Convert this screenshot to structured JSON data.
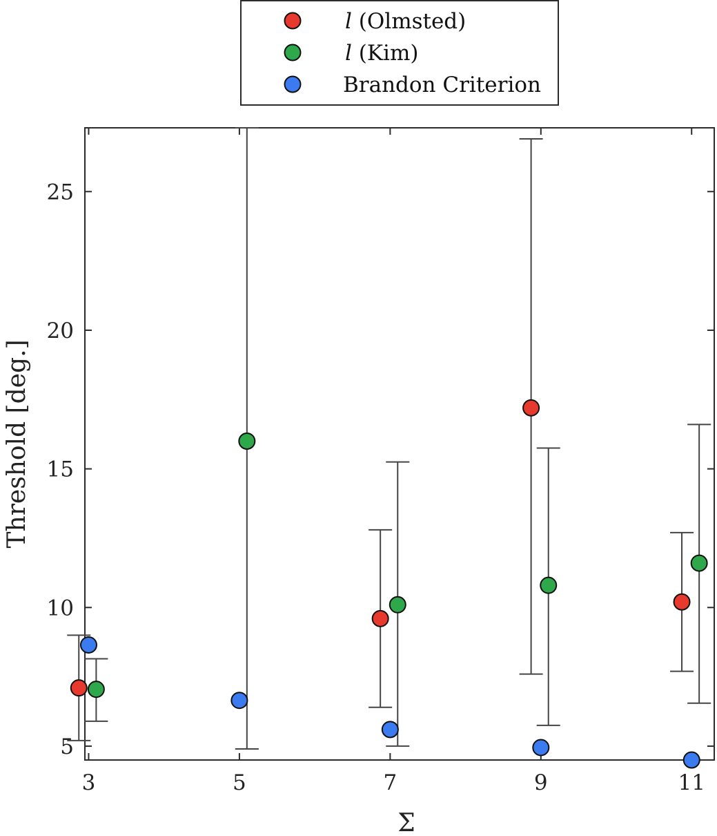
{
  "chart_data": {
    "type": "scatter",
    "xlabel": "Σ",
    "ylabel": "Threshold [deg.]",
    "x_ticks": [
      "3",
      "5",
      "7",
      "9",
      "11"
    ],
    "y_ticks": [
      "5",
      "10",
      "15",
      "20",
      "25"
    ],
    "x_range": [
      2.95,
      11.3
    ],
    "ylim": [
      4.5,
      27.3
    ],
    "grid": false,
    "legend_position": "top-center-outside",
    "colors": {
      "olmsted": "#e8392e",
      "kim": "#2ea84a",
      "brandon": "#3b7bef"
    },
    "series": [
      {
        "key": "olmsted",
        "legend_italic": "l",
        "legend_rest": " (Olmsted)",
        "color": "#e8392e",
        "points": [
          {
            "x": 3,
            "y": 7.1,
            "err_low": 5.2,
            "err_high": 9.0
          },
          {
            "x": 7,
            "y": 9.6,
            "err_low": 6.4,
            "err_high": 12.8
          },
          {
            "x": 9,
            "y": 17.2,
            "err_low": 7.6,
            "err_high": 26.9
          },
          {
            "x": 11,
            "y": 10.2,
            "err_low": 7.7,
            "err_high": 12.7
          }
        ]
      },
      {
        "key": "kim",
        "legend_italic": "l",
        "legend_rest": " (Kim)",
        "color": "#2ea84a",
        "points": [
          {
            "x": 3,
            "y": 7.05,
            "err_low": 5.9,
            "err_high": 8.15
          },
          {
            "x": 5,
            "y": 16.0,
            "err_low": 4.9,
            "err_high": 27.3
          },
          {
            "x": 7,
            "y": 10.1,
            "err_low": 5.0,
            "err_high": 15.25
          },
          {
            "x": 9,
            "y": 10.8,
            "err_low": 5.75,
            "err_high": 15.75
          },
          {
            "x": 11,
            "y": 11.6,
            "err_low": 6.55,
            "err_high": 16.6
          }
        ]
      },
      {
        "key": "brandon",
        "legend_italic": "",
        "legend_rest": "Brandon Criterion",
        "color": "#3b7bef",
        "points": [
          {
            "x": 3,
            "y": 8.65
          },
          {
            "x": 5,
            "y": 6.65
          },
          {
            "x": 7,
            "y": 5.6
          },
          {
            "x": 9,
            "y": 4.95
          },
          {
            "x": 11,
            "y": 4.5
          }
        ]
      }
    ]
  }
}
